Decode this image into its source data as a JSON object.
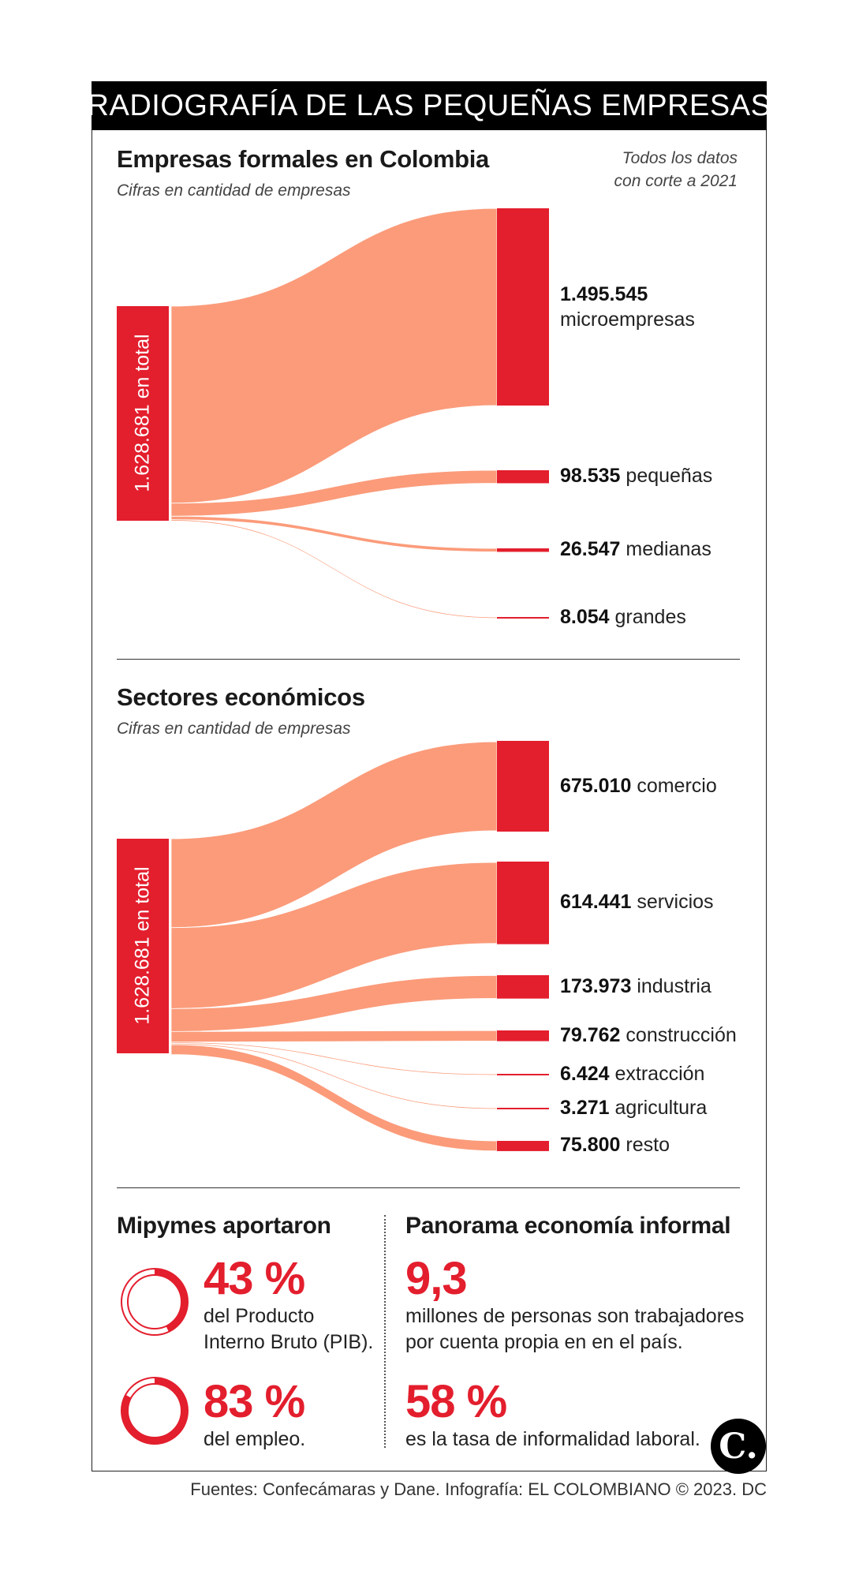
{
  "header": {
    "title": "RADIOGRAFÍA DE LAS PEQUEÑAS EMPRESAS"
  },
  "note": {
    "line1": "Todos los datos",
    "line2": "con corte a 2021"
  },
  "colors": {
    "accent": "#e31e2d",
    "flow": "#fb9b7a",
    "black": "#000000"
  },
  "chart_data": [
    {
      "type": "sankey",
      "title": "Empresas formales en Colombia",
      "subtitle": "Cifras en cantidad de empresas",
      "source_label": "1.628.681 en total",
      "total": 1628681,
      "targets": [
        {
          "value": 1495545,
          "value_label": "1.495.545",
          "name": "microempresas"
        },
        {
          "value": 98535,
          "value_label": "98.535",
          "name": "pequeñas"
        },
        {
          "value": 26547,
          "value_label": "26.547",
          "name": "medianas"
        },
        {
          "value": 8054,
          "value_label": "8.054",
          "name": "grandes"
        }
      ]
    },
    {
      "type": "sankey",
      "title": "Sectores económicos",
      "subtitle": "Cifras en cantidad de empresas",
      "source_label": "1.628.681 en total",
      "total": 1628681,
      "targets": [
        {
          "value": 675010,
          "value_label": "675.010",
          "name": "comercio"
        },
        {
          "value": 614441,
          "value_label": "614.441",
          "name": "servicios"
        },
        {
          "value": 173973,
          "value_label": "173.973",
          "name": "industria"
        },
        {
          "value": 79762,
          "value_label": "79.762",
          "name": "construcción"
        },
        {
          "value": 6424,
          "value_label": "6.424",
          "name": "extracción"
        },
        {
          "value": 3271,
          "value_label": "3.271",
          "name": "agricultura"
        },
        {
          "value": 75800,
          "value_label": "75.800",
          "name": "resto"
        }
      ]
    }
  ],
  "mipymes": {
    "title": "Mipymes aportaron",
    "items": [
      {
        "value_label": "43 %",
        "fraction": 0.43,
        "desc1": "del Producto",
        "desc2": "Interno Bruto (PIB)."
      },
      {
        "value_label": "83 %",
        "fraction": 0.83,
        "desc1": "del empleo.",
        "desc2": ""
      }
    ]
  },
  "informal": {
    "title": "Panorama economía informal",
    "items": [
      {
        "value_label": "9,3",
        "desc1": "millones de personas son trabajadores",
        "desc2": "por cuenta propia en en el país."
      },
      {
        "value_label": "58 %",
        "desc1": "es la tasa de informalidad laboral.",
        "desc2": ""
      }
    ]
  },
  "logo": {
    "text": "C."
  },
  "footer": {
    "source": "Fuentes: Confecámaras y Dane. Infografía: EL COLOMBIANO © 2023. DC"
  }
}
